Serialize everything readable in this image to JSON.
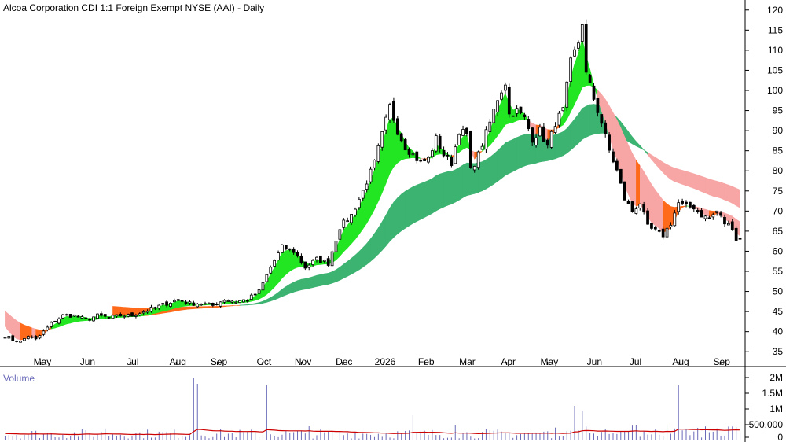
{
  "chart_data": [
    {
      "type": "candlestick",
      "title": "Alcoa Corporation CDI 1:1 Foreign Exempt NYSE (AAI) - Daily",
      "x_tick_labels": [
        "May",
        "Jun",
        "Jul",
        "Aug",
        "Sep",
        "Oct",
        "Nov",
        "Dec",
        "2026",
        "Feb",
        "Mar",
        "Apr",
        "May",
        "Jun",
        "Jul",
        "Aug",
        "Sep"
      ],
      "y_ticks": [
        35,
        40,
        45,
        50,
        55,
        60,
        65,
        70,
        75,
        80,
        85,
        90,
        95,
        100,
        105,
        110,
        115,
        120
      ],
      "ylim": [
        32.5,
        122.5
      ],
      "grid": false,
      "ribbons": [
        {
          "role": "short-term",
          "up_color": "#22e622",
          "down_color": "#ff6a1a",
          "fade_color": "#f7a5a5"
        },
        {
          "role": "long-term",
          "up_color": "#3cb371",
          "down_color": "#ff6a1a",
          "fade_color": "#f08080"
        }
      ],
      "price_anchors": [
        [
          0,
          39
        ],
        [
          2,
          38
        ],
        [
          4,
          37.5
        ],
        [
          6,
          39
        ],
        [
          8,
          38
        ],
        [
          10,
          40
        ],
        [
          12,
          42
        ],
        [
          15,
          44
        ],
        [
          18,
          44
        ],
        [
          21,
          43
        ],
        [
          24,
          44
        ],
        [
          27,
          43.5
        ],
        [
          30,
          44
        ],
        [
          33,
          44
        ],
        [
          36,
          45
        ],
        [
          39,
          46
        ],
        [
          42,
          47
        ],
        [
          45,
          48
        ],
        [
          48,
          47
        ],
        [
          51,
          47
        ],
        [
          54,
          46.5
        ],
        [
          57,
          48
        ],
        [
          60,
          47.5
        ],
        [
          63,
          48
        ],
        [
          66,
          50
        ],
        [
          69,
          56
        ],
        [
          72,
          61
        ],
        [
          75,
          60
        ],
        [
          78,
          56
        ],
        [
          81,
          58
        ],
        [
          84,
          57
        ],
        [
          87,
          66
        ],
        [
          90,
          69
        ],
        [
          93,
          75
        ],
        [
          96,
          82
        ],
        [
          98,
          89
        ],
        [
          100,
          96
        ],
        [
          102,
          90
        ],
        [
          104,
          86
        ],
        [
          106,
          84
        ],
        [
          108,
          82
        ],
        [
          110,
          83
        ],
        [
          112,
          88
        ],
        [
          114,
          84
        ],
        [
          116,
          82
        ],
        [
          118,
          90
        ],
        [
          120,
          89
        ],
        [
          121,
          80
        ],
        [
          123,
          84
        ],
        [
          126,
          92
        ],
        [
          128,
          98
        ],
        [
          130,
          102
        ],
        [
          131,
          94
        ],
        [
          133,
          95
        ],
        [
          135,
          93
        ],
        [
          137,
          88
        ],
        [
          139,
          90
        ],
        [
          141,
          86
        ],
        [
          143,
          92
        ],
        [
          145,
          95
        ],
        [
          147,
          107
        ],
        [
          149,
          112
        ],
        [
          150,
          117
        ],
        [
          151,
          104
        ],
        [
          153,
          98
        ],
        [
          155,
          92
        ],
        [
          157,
          85
        ],
        [
          159,
          80
        ],
        [
          161,
          73
        ],
        [
          163,
          70
        ],
        [
          165,
          72
        ],
        [
          167,
          66
        ],
        [
          169,
          65
        ],
        [
          171,
          64
        ],
        [
          173,
          67
        ],
        [
          175,
          72
        ],
        [
          177,
          71
        ],
        [
          179,
          71
        ],
        [
          181,
          69
        ],
        [
          183,
          68
        ],
        [
          185,
          70
        ],
        [
          187,
          67
        ],
        [
          189,
          66
        ],
        [
          190,
          63
        ]
      ]
    },
    {
      "type": "bar",
      "title": "Volume",
      "y_tick_labels": [
        "2M",
        "1.5M",
        "1M",
        "500,000",
        "0"
      ],
      "y_ticks": [
        2000000,
        1500000,
        1000000,
        500000,
        0
      ],
      "ylim": [
        0,
        2100000
      ],
      "bar_color": "#6a6ab8",
      "average_line_color": "#cc0000",
      "spikes": [
        [
          26,
          380000
        ],
        [
          49,
          2000000
        ],
        [
          50,
          1800000
        ],
        [
          68,
          1750000
        ],
        [
          79,
          450000
        ],
        [
          106,
          800000
        ],
        [
          117,
          500000
        ],
        [
          148,
          1100000
        ],
        [
          150,
          950000
        ],
        [
          172,
          500000
        ],
        [
          175,
          1750000
        ]
      ]
    }
  ]
}
